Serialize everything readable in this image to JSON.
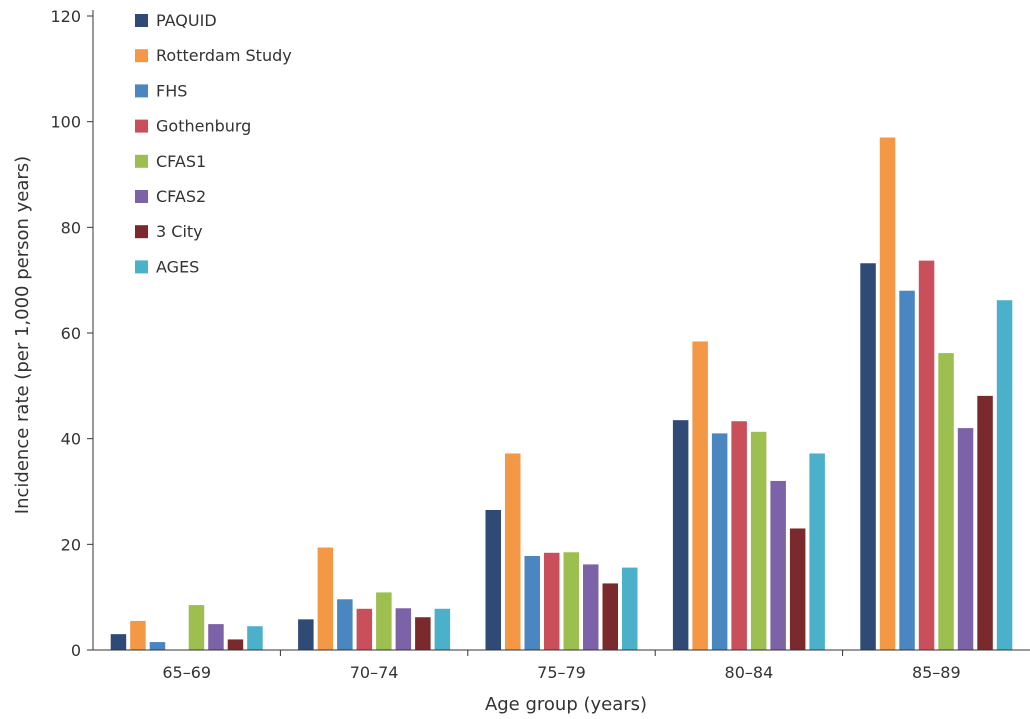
{
  "chart_data": {
    "type": "bar",
    "xlabel": "Age group (years)",
    "ylabel": "Incidence rate (per 1,000 person years)",
    "ylim": [
      0,
      120
    ],
    "yticks": [
      0,
      20,
      40,
      60,
      80,
      100,
      120
    ],
    "grid": false,
    "legend_position": "top-left",
    "categories": [
      "65–69",
      "70–74",
      "75–79",
      "80–84",
      "85–89"
    ],
    "series": [
      {
        "name": "PAQUID",
        "color": "#2e4a75",
        "values": [
          3.0,
          5.8,
          26.5,
          43.5,
          73.2
        ]
      },
      {
        "name": "Rotterdam Study",
        "color": "#f59845",
        "values": [
          5.5,
          19.4,
          37.2,
          58.4,
          97.0
        ]
      },
      {
        "name": "FHS",
        "color": "#4a86c0",
        "values": [
          1.5,
          9.6,
          17.8,
          41.0,
          68.0
        ]
      },
      {
        "name": "Gothenburg",
        "color": "#c9505b",
        "values": [
          null,
          7.8,
          18.4,
          43.3,
          73.7
        ]
      },
      {
        "name": "CFAS1",
        "color": "#9cbf4f",
        "values": [
          8.5,
          10.9,
          18.5,
          41.3,
          56.2
        ]
      },
      {
        "name": "CFAS2",
        "color": "#7c63a7",
        "values": [
          4.9,
          7.9,
          16.2,
          32.0,
          42.0
        ]
      },
      {
        "name": "3 City",
        "color": "#7a2a2c",
        "values": [
          2.0,
          6.2,
          12.6,
          23.0,
          48.1
        ]
      },
      {
        "name": "AGES",
        "color": "#4bb0c9",
        "values": [
          4.5,
          7.8,
          15.6,
          37.2,
          66.2
        ]
      }
    ]
  }
}
